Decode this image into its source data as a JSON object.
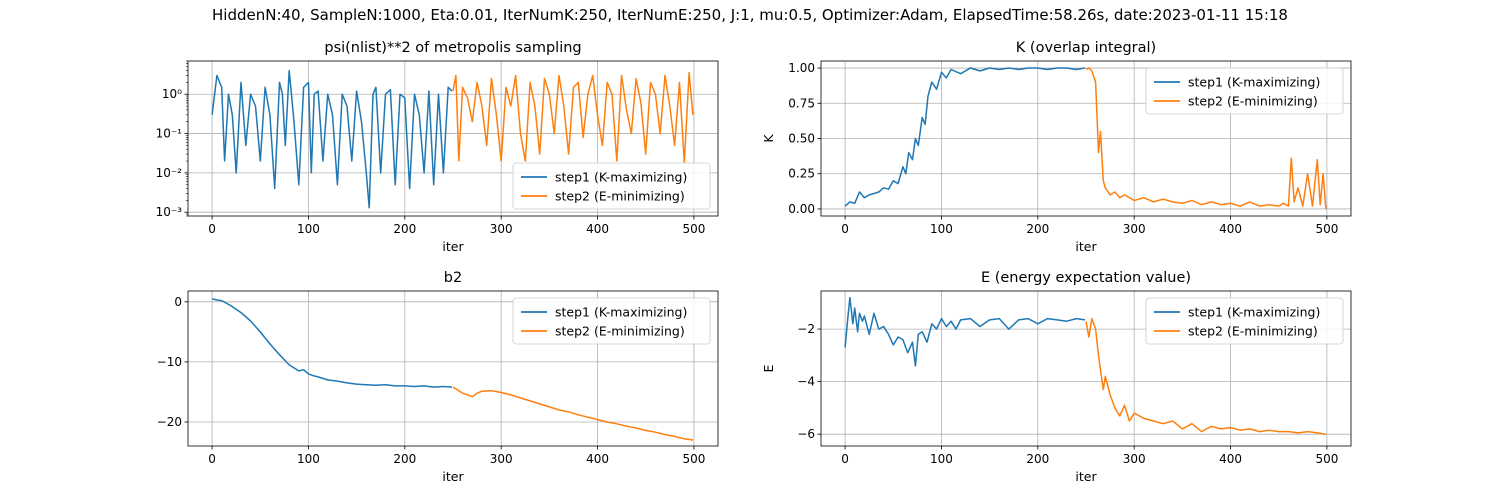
{
  "suptitle": "HiddenN:40, SampleN:1000, Eta:0.01, IterNumK:250, IterNumE:250, J:1, mu:0.5, Optimizer:Adam, ElapsedTime:58.26s, date:2023-01-11  15:18",
  "colors": {
    "step1": "#1f77b4",
    "step2": "#ff7f0e",
    "grid": "#b0b0b0"
  },
  "chart_data": [
    {
      "id": "psi",
      "type": "line",
      "title": "psi(nlist)**2 of metropolis sampling",
      "xlabel": "iter",
      "ylabel": "",
      "yscale": "log",
      "xlim": [
        -25,
        525
      ],
      "ylim": [
        0.0008,
        7
      ],
      "xticks": [
        0,
        100,
        200,
        300,
        400,
        500
      ],
      "yticks": [
        0.001,
        0.01,
        0.1,
        1
      ],
      "yticklabels": [
        "10⁻³",
        "10⁻²",
        "10⁻¹",
        "10⁰"
      ],
      "grid": true,
      "legend": {
        "position": "lower-right",
        "entries": [
          "step1 (K-maximizing)",
          "step2 (E-minimizing)"
        ]
      },
      "series": [
        {
          "name": "step1 (K-maximizing)",
          "x": [
            0,
            5,
            10,
            13,
            17,
            21,
            25,
            30,
            35,
            40,
            45,
            50,
            55,
            60,
            65,
            70,
            73,
            76,
            80,
            85,
            90,
            95,
            100,
            103,
            106,
            110,
            115,
            120,
            125,
            130,
            135,
            140,
            145,
            150,
            155,
            160,
            163,
            167,
            170,
            175,
            180,
            185,
            190,
            195,
            200,
            205,
            210,
            215,
            220,
            225,
            230,
            235,
            240,
            245,
            249
          ],
          "y": [
            0.3,
            3,
            1.5,
            0.02,
            1,
            0.3,
            0.01,
            2,
            0.05,
            1,
            0.5,
            0.02,
            1.5,
            0.3,
            0.004,
            2,
            1,
            0.05,
            4,
            0.2,
            0.005,
            1.5,
            2,
            0.01,
            1,
            1.2,
            0.02,
            1,
            0.3,
            0.005,
            1,
            0.5,
            0.02,
            1.2,
            0.2,
            0.01,
            0.0013,
            1,
            1.5,
            0.01,
            1,
            1.3,
            0.005,
            1,
            0.8,
            0.004,
            1,
            0.3,
            0.01,
            1.2,
            0.005,
            1,
            0.01,
            1.5,
            1.2
          ]
        },
        {
          "name": "step2 (E-minimizing)",
          "x": [
            250,
            253,
            256,
            260,
            265,
            270,
            275,
            280,
            285,
            290,
            295,
            300,
            305,
            310,
            315,
            320,
            325,
            330,
            335,
            340,
            345,
            350,
            355,
            360,
            365,
            370,
            375,
            380,
            385,
            390,
            395,
            400,
            405,
            410,
            415,
            420,
            425,
            430,
            435,
            440,
            445,
            450,
            455,
            460,
            465,
            470,
            475,
            480,
            485,
            490,
            495,
            499
          ],
          "y": [
            1.2,
            3,
            0.02,
            1.5,
            0.8,
            0.2,
            2,
            0.5,
            0.05,
            2.5,
            0.3,
            0.02,
            1.5,
            0.5,
            3,
            0.1,
            0.02,
            2,
            0.5,
            0.03,
            2.5,
            1,
            0.1,
            3,
            0.5,
            0.03,
            1.5,
            2,
            0.08,
            1,
            3,
            0.3,
            0.05,
            2,
            1,
            0.02,
            3,
            0.4,
            0.1,
            2.5,
            0.6,
            0.03,
            2,
            1,
            0.1,
            3,
            0.5,
            0.05,
            2,
            0.018,
            3.5,
            0.3
          ]
        }
      ]
    },
    {
      "id": "K",
      "type": "line",
      "title": "K (overlap integral)",
      "xlabel": "iter",
      "ylabel": "K",
      "yscale": "linear",
      "xlim": [
        -25,
        525
      ],
      "ylim": [
        -0.05,
        1.05
      ],
      "xticks": [
        0,
        100,
        200,
        300,
        400,
        500
      ],
      "yticks": [
        0,
        0.25,
        0.5,
        0.75,
        1.0
      ],
      "yticklabels": [
        "0.00",
        "0.25",
        "0.50",
        "0.75",
        "1.00"
      ],
      "grid": true,
      "legend": {
        "position": "upper-right",
        "entries": [
          "step1 (K-maximizing)",
          "step2 (E-minimizing)"
        ]
      },
      "series": [
        {
          "name": "step1 (K-maximizing)",
          "x": [
            0,
            5,
            10,
            15,
            20,
            25,
            30,
            35,
            40,
            45,
            50,
            55,
            60,
            63,
            66,
            70,
            73,
            76,
            80,
            83,
            86,
            90,
            95,
            100,
            105,
            110,
            120,
            130,
            140,
            150,
            160,
            170,
            180,
            190,
            200,
            210,
            220,
            230,
            240,
            249
          ],
          "y": [
            0.02,
            0.05,
            0.04,
            0.12,
            0.08,
            0.1,
            0.11,
            0.12,
            0.15,
            0.14,
            0.2,
            0.18,
            0.3,
            0.25,
            0.4,
            0.35,
            0.5,
            0.45,
            0.65,
            0.6,
            0.8,
            0.9,
            0.85,
            0.97,
            0.93,
            0.99,
            0.96,
            1.0,
            0.98,
            1.0,
            0.99,
            1.0,
            0.99,
            1.0,
            1.0,
            0.99,
            1.0,
            1.0,
            0.99,
            1.0
          ]
        },
        {
          "name": "step2 (E-minimizing)",
          "x": [
            250,
            253,
            256,
            260,
            263,
            265,
            268,
            270,
            275,
            280,
            285,
            290,
            300,
            310,
            320,
            330,
            340,
            350,
            360,
            370,
            380,
            390,
            400,
            410,
            420,
            430,
            440,
            450,
            455,
            460,
            463,
            466,
            470,
            475,
            480,
            485,
            490,
            493,
            496,
            499
          ],
          "y": [
            0.99,
            1.0,
            0.98,
            0.9,
            0.4,
            0.55,
            0.2,
            0.15,
            0.1,
            0.12,
            0.08,
            0.1,
            0.06,
            0.08,
            0.05,
            0.07,
            0.05,
            0.04,
            0.06,
            0.03,
            0.05,
            0.03,
            0.04,
            0.02,
            0.05,
            0.02,
            0.03,
            0.02,
            0.04,
            0.02,
            0.36,
            0.05,
            0.15,
            0.02,
            0.25,
            0.02,
            0.35,
            0.03,
            0.25,
            0.0
          ]
        }
      ]
    },
    {
      "id": "b2",
      "type": "line",
      "title": "b2",
      "xlabel": "iter",
      "ylabel": "",
      "yscale": "linear",
      "xlim": [
        -25,
        525
      ],
      "ylim": [
        -24,
        1.8
      ],
      "xticks": [
        0,
        100,
        200,
        300,
        400,
        500
      ],
      "yticks": [
        0,
        -10,
        -20
      ],
      "yticklabels": [
        "0",
        "−10",
        "−20"
      ],
      "grid": true,
      "legend": {
        "position": "upper-right",
        "entries": [
          "step1 (K-maximizing)",
          "step2 (E-minimizing)"
        ]
      },
      "series": [
        {
          "name": "step1 (K-maximizing)",
          "x": [
            0,
            5,
            10,
            20,
            30,
            40,
            50,
            60,
            70,
            80,
            85,
            90,
            95,
            100,
            105,
            110,
            120,
            130,
            140,
            150,
            160,
            170,
            180,
            190,
            200,
            210,
            220,
            230,
            240,
            249
          ],
          "y": [
            0.5,
            0.3,
            0.2,
            -0.7,
            -1.8,
            -3.2,
            -5,
            -7,
            -8.8,
            -10.5,
            -11,
            -11.5,
            -11.3,
            -12,
            -12.3,
            -12.5,
            -13,
            -13.2,
            -13.5,
            -13.7,
            -13.8,
            -13.9,
            -13.8,
            -14,
            -14,
            -14.1,
            -14,
            -14.2,
            -14.1,
            -14.2
          ]
        },
        {
          "name": "step2 (E-minimizing)",
          "x": [
            250,
            260,
            270,
            275,
            280,
            290,
            300,
            310,
            320,
            330,
            340,
            350,
            360,
            370,
            380,
            390,
            400,
            410,
            420,
            430,
            440,
            450,
            460,
            470,
            480,
            490,
            499
          ],
          "y": [
            -14.2,
            -15.2,
            -15.8,
            -15.2,
            -14.9,
            -14.8,
            -15.1,
            -15.5,
            -16,
            -16.5,
            -17,
            -17.5,
            -18,
            -18.3,
            -18.8,
            -19.2,
            -19.6,
            -20,
            -20.3,
            -20.7,
            -21,
            -21.4,
            -21.7,
            -22.1,
            -22.4,
            -22.8,
            -23
          ]
        }
      ]
    },
    {
      "id": "E",
      "type": "line",
      "title": "E (energy expectation value)",
      "xlabel": "iter",
      "ylabel": "E",
      "yscale": "linear",
      "xlim": [
        -25,
        525
      ],
      "ylim": [
        -6.45,
        -0.55
      ],
      "xticks": [
        0,
        100,
        200,
        300,
        400,
        500
      ],
      "yticks": [
        -2,
        -4,
        -6
      ],
      "yticklabels": [
        "−2",
        "−4",
        "−6"
      ],
      "grid": true,
      "legend": {
        "position": "upper-right",
        "entries": [
          "step1 (K-maximizing)",
          "step2 (E-minimizing)"
        ]
      },
      "series": [
        {
          "name": "step1 (K-maximizing)",
          "x": [
            0,
            3,
            5,
            8,
            10,
            13,
            15,
            18,
            20,
            25,
            30,
            35,
            40,
            45,
            50,
            55,
            60,
            65,
            70,
            73,
            76,
            80,
            85,
            90,
            95,
            100,
            105,
            110,
            115,
            120,
            130,
            140,
            150,
            160,
            170,
            180,
            190,
            200,
            210,
            220,
            230,
            240,
            249
          ],
          "y": [
            -2.7,
            -1.5,
            -0.8,
            -1.8,
            -1.2,
            -2.1,
            -1.4,
            -1.7,
            -1.5,
            -2.2,
            -1.4,
            -2,
            -1.9,
            -2.2,
            -2.6,
            -2.3,
            -2.4,
            -2.9,
            -2.5,
            -3.4,
            -2.2,
            -2.1,
            -2.5,
            -1.8,
            -2.0,
            -1.6,
            -1.9,
            -1.7,
            -2.0,
            -1.65,
            -1.6,
            -1.9,
            -1.65,
            -1.6,
            -2.0,
            -1.65,
            -1.6,
            -1.8,
            -1.6,
            -1.65,
            -1.7,
            -1.6,
            -1.65
          ]
        },
        {
          "name": "step2 (E-minimizing)",
          "x": [
            250,
            253,
            256,
            260,
            263,
            266,
            268,
            270,
            275,
            280,
            285,
            290,
            295,
            300,
            310,
            320,
            330,
            340,
            350,
            360,
            370,
            380,
            390,
            400,
            410,
            420,
            430,
            440,
            450,
            460,
            470,
            480,
            490,
            499
          ],
          "y": [
            -1.7,
            -2.3,
            -1.6,
            -2.0,
            -3.0,
            -3.8,
            -4.3,
            -3.8,
            -4.5,
            -5.0,
            -5.3,
            -4.9,
            -5.5,
            -5.2,
            -5.4,
            -5.5,
            -5.6,
            -5.5,
            -5.8,
            -5.6,
            -5.9,
            -5.7,
            -5.8,
            -5.75,
            -5.85,
            -5.8,
            -5.9,
            -5.85,
            -5.9,
            -5.9,
            -5.95,
            -5.9,
            -5.95,
            -6.0
          ]
        }
      ]
    }
  ]
}
